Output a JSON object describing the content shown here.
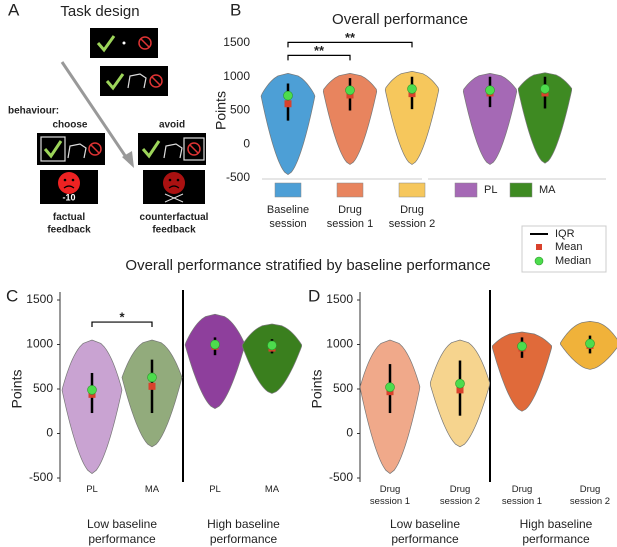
{
  "panel_labels": [
    "A",
    "B",
    "C",
    "D"
  ],
  "task_design": {
    "title": "Task design",
    "behaviour": "behaviour:",
    "choose": "choose",
    "avoid": "avoid",
    "factual_outcome": "-10",
    "factual": "factual feedback",
    "counterfactual": "counterfactual feedback"
  },
  "section_title": "Overall performance stratified by baseline performance",
  "key": [
    "IQR",
    "Mean",
    "Median"
  ],
  "chart_data": [
    {
      "type": "violin",
      "title": "Overall performance",
      "ylabel": "Points",
      "ylim": [
        -500,
        1500
      ],
      "yticks": [
        -500,
        0,
        500,
        1000,
        1500
      ],
      "legend": "below",
      "categories": [
        "Baseline session",
        "Drug session 1",
        "Drug session 2"
      ],
      "colors": [
        "#4d9fd6",
        "#e8845e",
        "#f6c75c"
      ],
      "min": [
        -450,
        -300,
        -300
      ],
      "max": [
        1050,
        1050,
        1080
      ],
      "q1": [
        350,
        500,
        520
      ],
      "q3": [
        900,
        980,
        1000
      ],
      "mean": [
        600,
        730,
        750
      ],
      "median": [
        720,
        800,
        820
      ],
      "significance": [
        {
          "pair": [
            0,
            1
          ],
          "label": "**"
        },
        {
          "pair": [
            0,
            2
          ],
          "label": "**"
        }
      ]
    },
    {
      "type": "violin",
      "ylim": [
        -500,
        1500
      ],
      "legend": "side",
      "categories": [
        "PL",
        "MA"
      ],
      "colors": [
        "#a569b5",
        "#3e8a22"
      ],
      "min": [
        -300,
        -280
      ],
      "max": [
        1050,
        1060
      ],
      "q1": [
        550,
        530
      ],
      "q3": [
        1000,
        1000
      ],
      "mean": [
        760,
        760
      ],
      "median": [
        800,
        820
      ]
    },
    {
      "type": "violin",
      "ylabel": "Points",
      "ylim": [
        -500,
        1500
      ],
      "yticks": [
        -500,
        0,
        500,
        1000,
        1500
      ],
      "categories": [
        "PL",
        "MA",
        "PL",
        "MA"
      ],
      "groups": [
        "Low baseline performance",
        "High baseline performance"
      ],
      "colors": [
        "#c9a3d2",
        "#92ab7c",
        "#8e3f9c",
        "#3a7f1e"
      ],
      "min": [
        -450,
        -150,
        280,
        450
      ],
      "max": [
        1050,
        1050,
        1340,
        1230
      ],
      "q1": [
        230,
        230,
        880,
        900
      ],
      "q3": [
        680,
        830,
        1080,
        1060
      ],
      "mean": [
        440,
        530,
        980,
        960
      ],
      "median": [
        490,
        630,
        1000,
        990
      ],
      "significance": [
        {
          "pair": [
            0,
            1
          ],
          "label": "*"
        }
      ]
    },
    {
      "type": "violin",
      "ylabel": "Points",
      "ylim": [
        -500,
        1500
      ],
      "yticks": [
        -500,
        0,
        500,
        1000,
        1500
      ],
      "categories": [
        "Drug session 1",
        "Drug session 2",
        "Drug session 1",
        "Drug session 2"
      ],
      "groups": [
        "Low baseline performance",
        "High baseline performance"
      ],
      "colors": [
        "#f0a98a",
        "#f6d48e",
        "#e06a3a",
        "#f0b23a"
      ],
      "min": [
        -450,
        -150,
        250,
        720
      ],
      "max": [
        1050,
        1050,
        1140,
        1260
      ],
      "q1": [
        230,
        200,
        850,
        900
      ],
      "q3": [
        780,
        820,
        1080,
        1100
      ],
      "mean": [
        470,
        490,
        960,
        990
      ],
      "median": [
        520,
        560,
        980,
        1010
      ]
    }
  ]
}
